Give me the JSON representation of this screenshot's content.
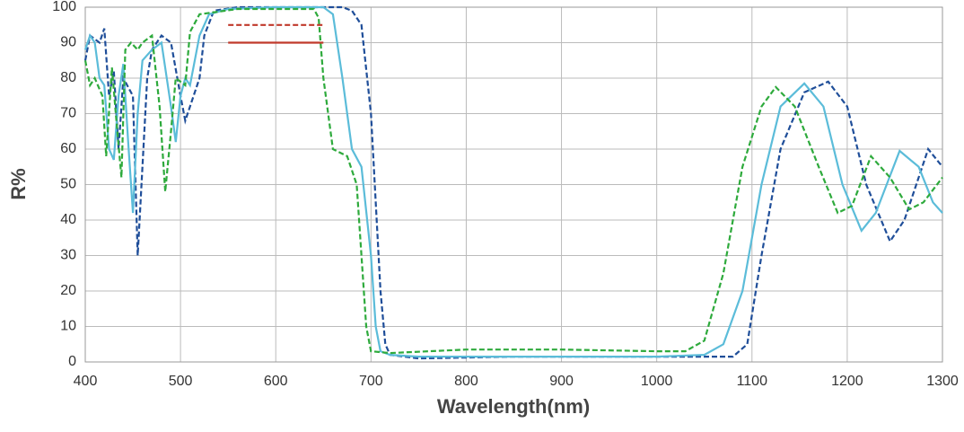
{
  "chart_data": {
    "type": "line",
    "xlabel": "Wavelength(nm)",
    "ylabel": "R%",
    "xlim": [
      400,
      1300
    ],
    "xticks": [
      400,
      500,
      600,
      700,
      800,
      900,
      1000,
      1100,
      1200,
      1300
    ],
    "ylim": [
      0,
      100
    ],
    "yticks": [
      0,
      10,
      20,
      30,
      40,
      50,
      60,
      70,
      80,
      90,
      100
    ],
    "grid": true,
    "series": [
      {
        "color": "#1f4e99",
        "dash": true,
        "x": [
          400,
          405,
          415,
          420,
          425,
          430,
          435,
          440,
          450,
          455,
          460,
          465,
          470,
          480,
          490,
          500,
          505,
          510,
          520,
          525,
          535,
          560,
          600,
          670,
          680,
          690,
          700,
          710,
          715,
          720,
          750,
          850,
          1000,
          1080,
          1095,
          1110,
          1130,
          1155,
          1180,
          1200,
          1220,
          1245,
          1260,
          1285,
          1300
        ],
        "values": [
          85,
          92,
          90,
          94,
          75,
          82,
          60,
          80,
          75,
          30,
          55,
          80,
          88,
          92,
          90,
          75,
          68,
          72,
          80,
          92,
          99,
          100,
          100,
          100,
          99,
          95,
          70,
          20,
          5,
          2,
          1,
          1.5,
          1.5,
          1.5,
          5,
          30,
          60,
          76,
          79,
          72,
          50,
          34,
          40,
          60,
          55
        ]
      },
      {
        "color": "#5bbcd9",
        "dash": false,
        "x": [
          400,
          405,
          410,
          415,
          420,
          425,
          430,
          435,
          440,
          445,
          450,
          455,
          460,
          470,
          480,
          490,
          495,
          500,
          505,
          510,
          520,
          530,
          550,
          600,
          650,
          660,
          670,
          680,
          690,
          700,
          705,
          710,
          720,
          750,
          800,
          900,
          1000,
          1050,
          1070,
          1090,
          1110,
          1130,
          1155,
          1175,
          1195,
          1215,
          1230,
          1255,
          1275,
          1290,
          1300
        ],
        "values": [
          88,
          92,
          90,
          80,
          78,
          60,
          57,
          75,
          84,
          62,
          42,
          70,
          85,
          88,
          90,
          72,
          62,
          75,
          80,
          78,
          92,
          98,
          99.5,
          100,
          100,
          98,
          80,
          60,
          55,
          30,
          10,
          3,
          2,
          1.5,
          1.5,
          1.5,
          1.5,
          2,
          5,
          20,
          50,
          72,
          78.5,
          72,
          50,
          37,
          42,
          59.5,
          55,
          45,
          42
        ]
      },
      {
        "color": "#2eaa3c",
        "dash": true,
        "x": [
          400,
          405,
          410,
          418,
          422,
          428,
          432,
          438,
          442,
          448,
          455,
          460,
          470,
          478,
          484,
          490,
          495,
          505,
          510,
          520,
          560,
          640,
          645,
          650,
          660,
          675,
          685,
          690,
          695,
          700,
          720,
          800,
          850,
          900,
          1000,
          1030,
          1050,
          1070,
          1090,
          1110,
          1125,
          1145,
          1170,
          1190,
          1205,
          1225,
          1245,
          1265,
          1280,
          1300
        ],
        "values": [
          85,
          78,
          80,
          75,
          58,
          83,
          70,
          52,
          88,
          90,
          88,
          90,
          92,
          72,
          48,
          65,
          80,
          78,
          93,
          98,
          99.5,
          99.5,
          97,
          80,
          60,
          58,
          50,
          30,
          10,
          3,
          2.5,
          3.5,
          3.5,
          3.5,
          3,
          3,
          6,
          25,
          55,
          72,
          77.5,
          72,
          55,
          42,
          44,
          58,
          52,
          43,
          45,
          52
        ]
      },
      {
        "color": "#c0392b",
        "dash": true,
        "x": [
          550,
          650
        ],
        "values": [
          95,
          95
        ]
      },
      {
        "color": "#c0392b",
        "dash": false,
        "x": [
          550,
          650
        ],
        "values": [
          90,
          90
        ]
      }
    ]
  }
}
